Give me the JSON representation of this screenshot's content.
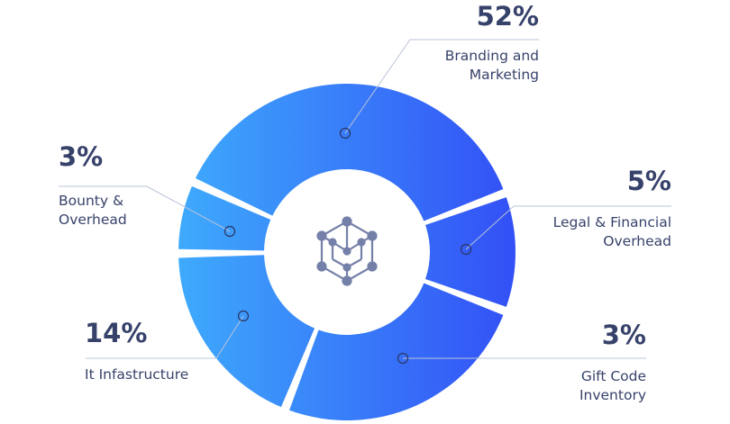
{
  "chart_data": {
    "type": "pie",
    "style": "donut",
    "categories": [
      "Branding and Marketing",
      "Legal & Financial Overhead",
      "Gift Code Inventory",
      "It Infastructure",
      "Bounty & Overhead"
    ],
    "values": [
      52,
      5,
      3,
      14,
      3
    ],
    "value_labels": [
      "52%",
      "5%",
      "3%",
      "14%",
      "3%"
    ],
    "label_lines": [
      [
        "Branding and",
        "Marketing"
      ],
      [
        "Legal & Financial",
        "Overhead"
      ],
      [
        "Gift Code",
        "Inventory"
      ],
      [
        "It Infastructure"
      ],
      [
        "Bounty &",
        "Overhead"
      ]
    ],
    "unit": "%",
    "legend": "none",
    "gradient_colors": [
      "#3eaafc",
      "#3350f6"
    ],
    "center_icon": "hexagon-network-icon"
  },
  "colors": {
    "text": "#37426b",
    "leader_line": "#b9c3d9",
    "icon": "#7580a8"
  }
}
